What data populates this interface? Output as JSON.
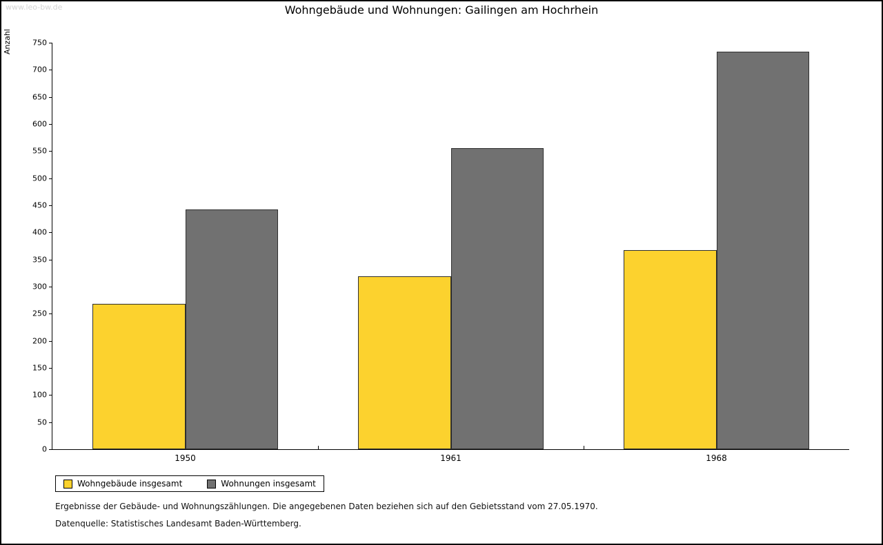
{
  "watermark": "www.leo-bw.de",
  "chart_data": {
    "type": "bar",
    "title": "Wohngebäude und Wohnungen: Gailingen am Hochrhein",
    "xlabel": "",
    "ylabel": "Anzahl",
    "categories": [
      "1950",
      "1961",
      "1968"
    ],
    "series": [
      {
        "name": "Wohngebäude insgesamt",
        "color": "#fcd22e",
        "values": [
          268,
          319,
          367
        ]
      },
      {
        "name": "Wohnungen insgesamt",
        "color": "#717171",
        "values": [
          443,
          555,
          733
        ]
      }
    ],
    "ylim": [
      0,
      750
    ],
    "ytick_step": 50,
    "grid": false,
    "legend_position": "bottom-left"
  },
  "footnotes": [
    "Ergebnisse der Gebäude- und Wohnungszählungen. Die angegebenen Daten beziehen sich auf den Gebietsstand vom 27.05.1970.",
    "Datenquelle: Statistisches Landesamt Baden-Württemberg."
  ]
}
